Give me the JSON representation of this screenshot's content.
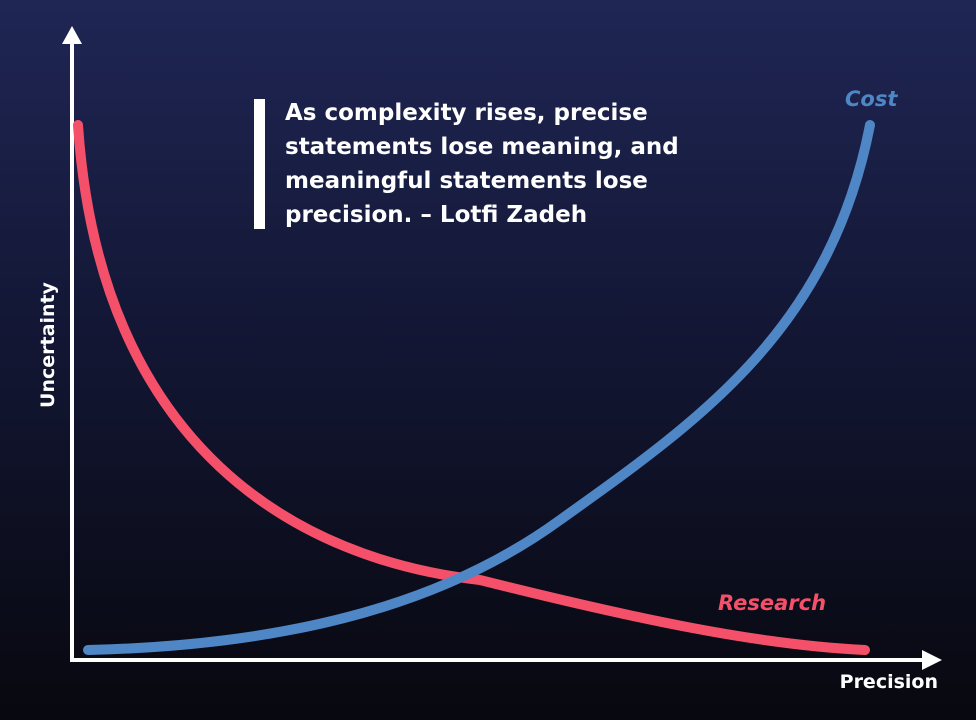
{
  "quote": "As complexity rises, precise statements lose meaning, and meaningful statements lose precision. – Lotfi Zadeh",
  "x_axis_label": "Precision",
  "y_axis_label": "Uncertainty",
  "curves": [
    {
      "label": "Cost"
    },
    {
      "label": "Research"
    }
  ]
}
